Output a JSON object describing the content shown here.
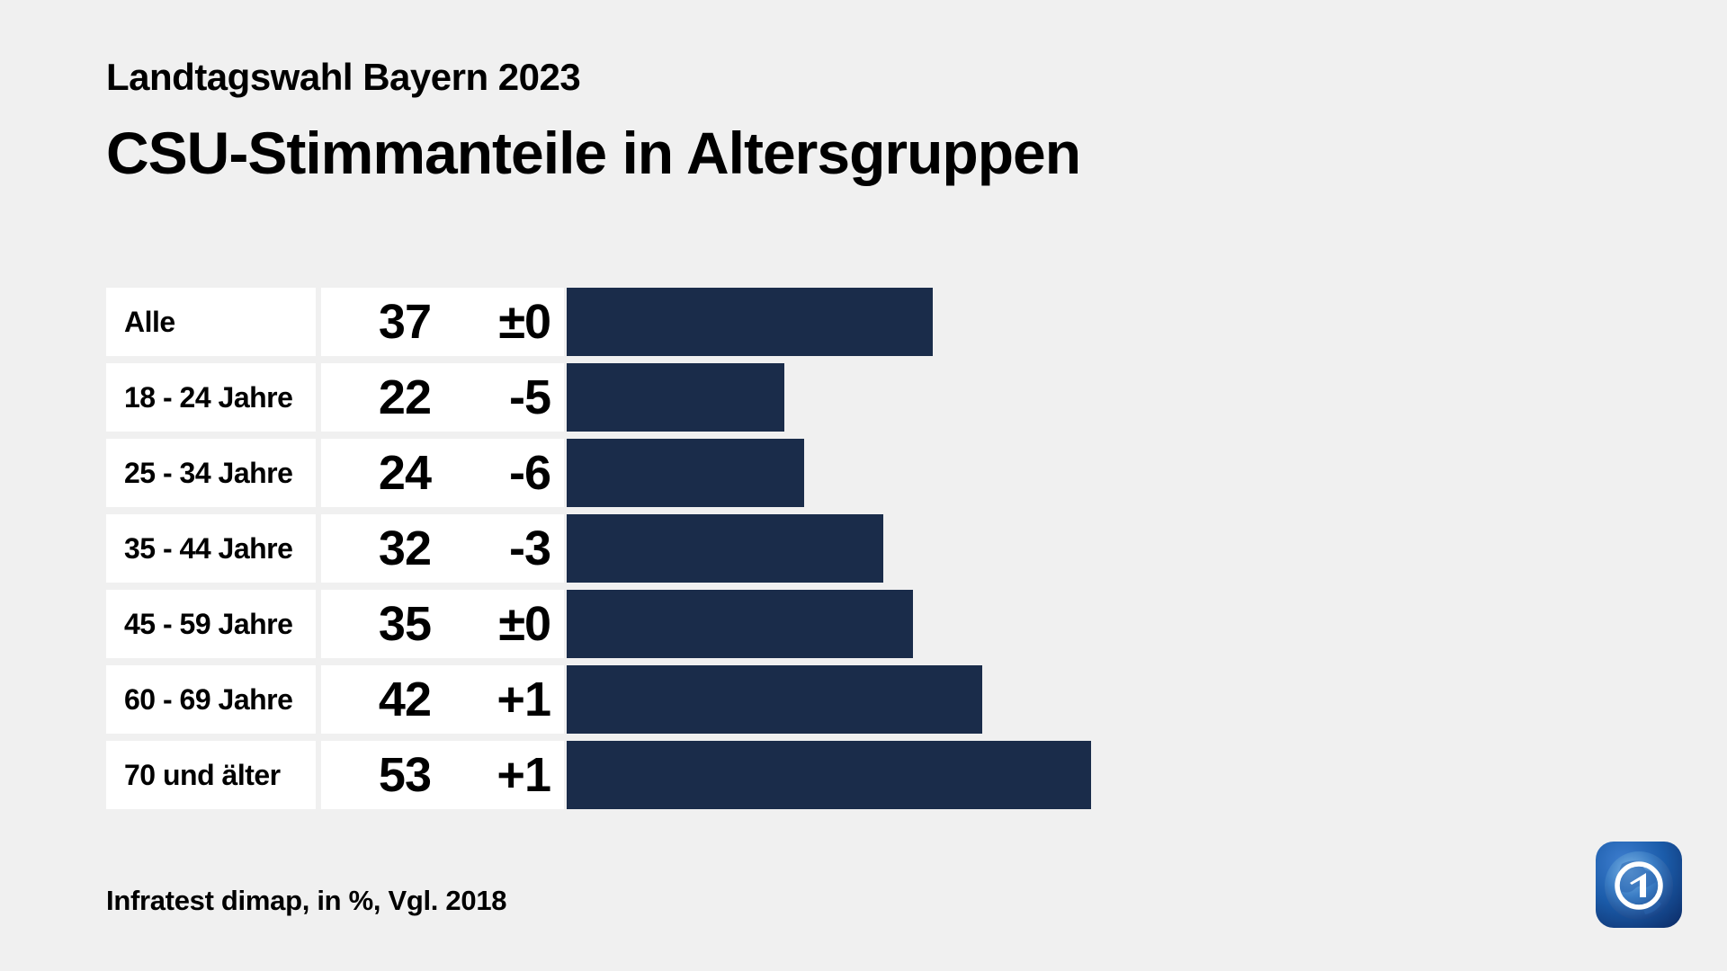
{
  "title": {
    "subtitle": "Landtagswahl Bayern 2023",
    "main": "CSU-Stimmanteile in Altersgruppen"
  },
  "footer": {
    "source": "Infratest dimap, in %, Vgl. 2018"
  },
  "colors": {
    "background": "#f0f0f0",
    "cell": "#ffffff",
    "bar": "#1a2c4a",
    "text": "#000000",
    "logo_blue_light": "#4a8fd8",
    "logo_blue_mid": "#1b5caa",
    "logo_blue_dark": "#0d2f6b"
  },
  "icons": {
    "brand": "ard-one-globe-logo"
  },
  "chart_data": {
    "type": "bar",
    "orientation": "horizontal",
    "title": "CSU-Stimmanteile in Altersgruppen",
    "subtitle": "Landtagswahl Bayern 2023",
    "unit": "%",
    "comparison_note": "Vgl. 2018",
    "source": "Infratest dimap",
    "value_axis_visible": false,
    "grid": false,
    "legend": false,
    "categories": [
      "Alle",
      "18 - 24 Jahre",
      "25 - 34 Jahre",
      "35 - 44 Jahre",
      "45 - 59 Jahre",
      "60 - 69 Jahre",
      "70 und älter"
    ],
    "values": [
      37,
      22,
      24,
      32,
      35,
      42,
      53
    ],
    "changes": [
      "±0",
      "-5",
      "-6",
      "-3",
      "±0",
      "+1",
      "+1"
    ]
  }
}
